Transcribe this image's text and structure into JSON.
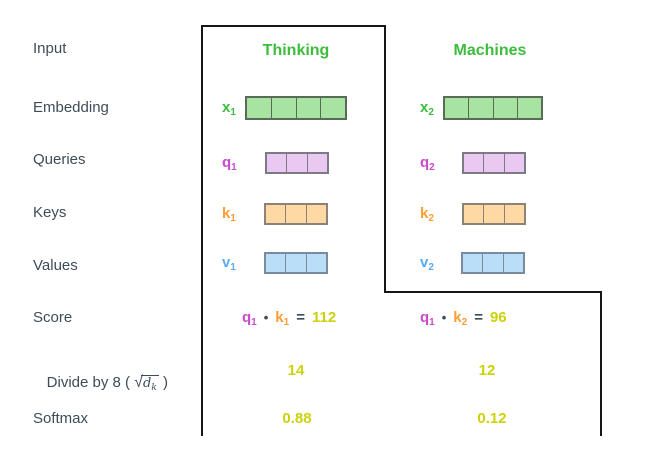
{
  "colors": {
    "canvas_bg": "#ffffff",
    "outline_black": "#161616",
    "text_dark": "#3e4c59",
    "header_green": "#3cbd3c",
    "x_green": "#3cbd3c",
    "q_magenta": "#c94aca",
    "k_orange": "#ff9c33",
    "v_blue": "#5aabf0",
    "result_yellow": "#ccd20a",
    "cell_green_fill": "#a7e3a1",
    "cell_green_border": "#5a6b57",
    "cell_purple_fill": "#e9c9f1",
    "cell_purple_border": "#7e7887",
    "cell_orange_fill": "#ffd9a4",
    "cell_orange_border": "#8d8273",
    "cell_blue_fill": "#badef7",
    "cell_blue_border": "#7a8b9d"
  },
  "row_labels": {
    "input": "Input",
    "embedding": "Embedding",
    "queries": "Queries",
    "keys": "Keys",
    "values": "Values",
    "score": "Score",
    "softmax": "Softmax",
    "divide": {
      "prefix": "Divide by 8 ( ",
      "sqrt_symbol": "√",
      "radicand": "d",
      "radicand_sub": "k",
      "suffix": " )"
    }
  },
  "columns": [
    {
      "header": "Thinking",
      "embedding": {
        "label": {
          "base": "x",
          "sub": "1"
        },
        "cells": 4
      },
      "query": {
        "label": {
          "base": "q",
          "sub": "1"
        },
        "cells": 3
      },
      "key": {
        "label": {
          "base": "k",
          "sub": "1"
        },
        "cells": 3
      },
      "value": {
        "label": {
          "base": "v",
          "sub": "1"
        },
        "cells": 3
      },
      "score": {
        "q_base": "q",
        "q_sub": "1",
        "dot": "•",
        "k_base": "k",
        "k_sub": "1",
        "equals": "=",
        "result": "112"
      },
      "divided": "14",
      "softmax": "0.88"
    },
    {
      "header": "Machines",
      "embedding": {
        "label": {
          "base": "x",
          "sub": "2"
        },
        "cells": 4
      },
      "query": {
        "label": {
          "base": "q",
          "sub": "2"
        },
        "cells": 3
      },
      "key": {
        "label": {
          "base": "k",
          "sub": "2"
        },
        "cells": 3
      },
      "value": {
        "label": {
          "base": "v",
          "sub": "2"
        },
        "cells": 3
      },
      "score": {
        "q_base": "q",
        "q_sub": "1",
        "dot": "•",
        "k_base": "k",
        "k_sub": "2",
        "equals": "=",
        "result": "96"
      },
      "divided": "12",
      "softmax": "0.12"
    }
  ]
}
